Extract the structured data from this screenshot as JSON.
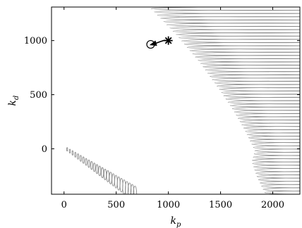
{
  "chart_data": {
    "type": "scatter",
    "xlabel_main": "k",
    "xlabel_sub": "p",
    "ylabel_main": "k",
    "ylabel_sub": "d",
    "xlim": [
      -120,
      2260
    ],
    "ylim": [
      -420,
      1310
    ],
    "x_ticks": [
      0,
      500,
      1000,
      1500,
      2000
    ],
    "y_ticks": [
      0,
      500,
      1000
    ],
    "x_tick_labels": [
      "0",
      "500",
      "1000",
      "1500",
      "2000"
    ],
    "y_tick_labels": [
      "0",
      "500",
      "1000"
    ],
    "grid": false,
    "box": true,
    "colors": {
      "curves": "#8c8c8c",
      "markers": "#000000",
      "axes": "#000000"
    },
    "trajectory": {
      "start": {
        "x": 1000,
        "y": 1000,
        "marker": "asterisk"
      },
      "end": {
        "x": 830,
        "y": 965,
        "marker": "circle"
      },
      "points": [
        [
          1000,
          1000
        ],
        [
          960,
          1002
        ],
        [
          920,
          990
        ],
        [
          880,
          975
        ],
        [
          845,
          965
        ],
        [
          830,
          965
        ]
      ]
    },
    "boundary_curve": {
      "points": [
        [
          820,
          1310
        ],
        [
          1080,
          1050
        ],
        [
          1300,
          800
        ],
        [
          1480,
          560
        ],
        [
          1620,
          360
        ],
        [
          1740,
          160
        ],
        [
          1800,
          40
        ],
        [
          1830,
          -20
        ],
        [
          1800,
          -120
        ],
        [
          1850,
          -260
        ],
        [
          1930,
          -420
        ]
      ],
      "ellipse_right_x": 2260,
      "ellipse_count": 58
    },
    "lower_ellipses": {
      "count": 26,
      "start": [
        30,
        -5
      ],
      "end": [
        680,
        -420
      ],
      "width_start": 10,
      "width_end": 32,
      "height_start": 8,
      "height_end": 38
    }
  }
}
